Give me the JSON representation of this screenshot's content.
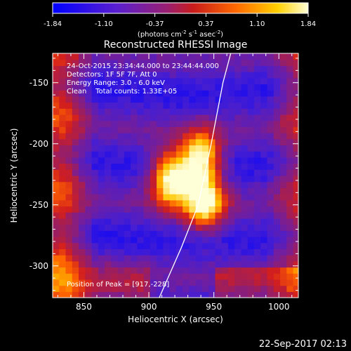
{
  "colorbar": {
    "ticks": [
      "-1.84",
      "-1.10",
      "-0.37",
      "0.37",
      "1.10",
      "1.84"
    ],
    "unit_main": "(photons cm",
    "unit_exp1": "-2",
    "unit_mid": " s",
    "unit_exp2": "-1",
    "unit_end": " asec",
    "unit_exp3": "-2",
    "unit_close": ")"
  },
  "chart_data": {
    "type": "heatmap",
    "title": "Reconstructed RHESSI Image",
    "xlabel": "Heliocentric X (arcsec)",
    "ylabel": "Heliocentric Y (arcsec)",
    "xlim": [
      826,
      1015
    ],
    "ylim": [
      -326,
      -126
    ],
    "x_ticks": [
      850,
      900,
      950,
      1000
    ],
    "y_ticks": [
      -150,
      -200,
      -250,
      -300
    ],
    "value_range": [
      -1.84,
      1.84
    ],
    "annotations": [
      "24-Oct-2015 23:34:44.000 to 23:44:44.000",
      "Detectors: 1F 5F 7F, Att 0",
      "Energy Range: 3.0 - 6.0 keV",
      "Clean    Total counts: 1.33E+05"
    ],
    "peak_label": "Position of Peak = [917,-228]",
    "peak": [
      917,
      -228
    ],
    "sources": [
      {
        "x": 917,
        "y": -228,
        "peak": 1.84
      },
      {
        "x": 940,
        "y": -212,
        "peak": 1.55
      },
      {
        "x": 943,
        "y": -248,
        "peak": 1.45
      }
    ],
    "limb_points": [
      [
        908,
        -326
      ],
      [
        925,
        -285
      ],
      [
        938,
        -250
      ],
      [
        948,
        -200
      ],
      [
        957,
        -150
      ],
      [
        963,
        -126
      ]
    ]
  },
  "timestamp": "22-Sep-2017 02:13",
  "colors": {
    "background": "#000000",
    "axis": "#ffffff",
    "limb": "#ffffff"
  }
}
